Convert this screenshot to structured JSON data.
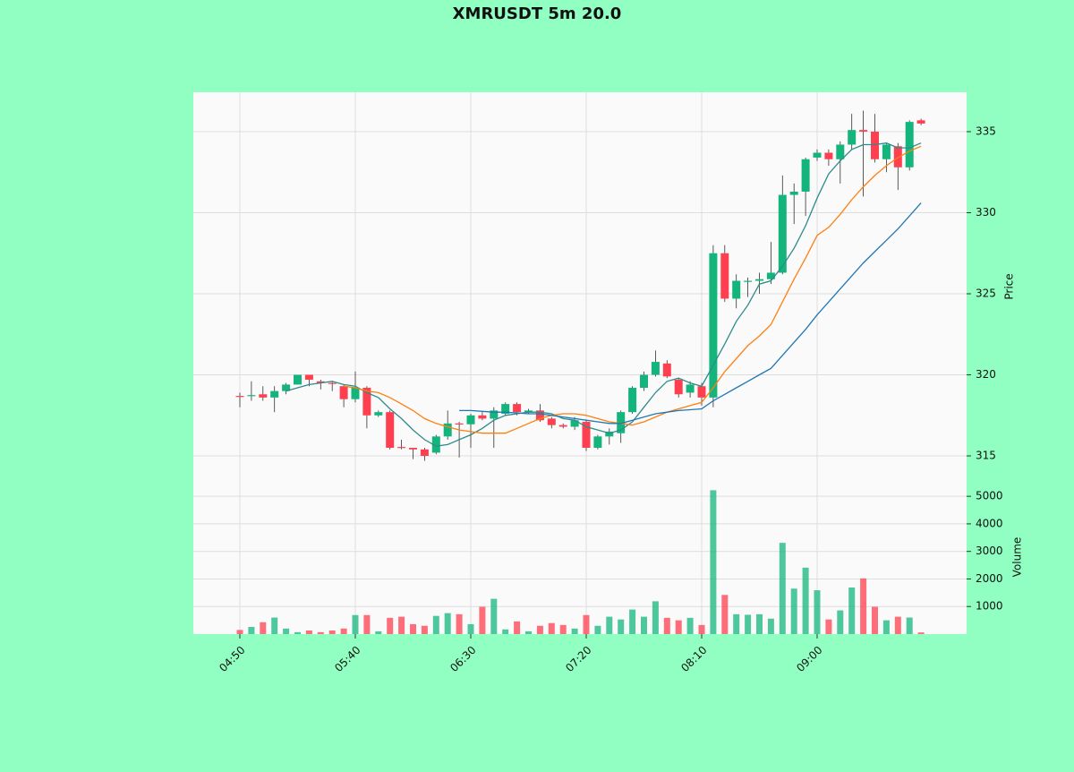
{
  "chart_data": {
    "type": "candlestick",
    "title": "XMRUSDT 5m 20.0",
    "categories": [
      "04:50",
      null,
      null,
      null,
      null,
      null,
      null,
      null,
      null,
      null,
      "05:40",
      null,
      null,
      null,
      null,
      null,
      null,
      null,
      null,
      null,
      "06:30",
      null,
      null,
      null,
      null,
      null,
      null,
      null,
      null,
      null,
      "07:20",
      null,
      null,
      null,
      null,
      null,
      null,
      null,
      null,
      null,
      "08:10",
      null,
      null,
      null,
      null,
      null,
      null,
      null,
      null,
      null,
      "09:00",
      null,
      null,
      null,
      null,
      null,
      null,
      null,
      null,
      null
    ],
    "open": [
      318.7,
      318.7,
      318.8,
      318.6,
      319.0,
      319.4,
      320.0,
      319.6,
      319.5,
      319.3,
      318.5,
      319.2,
      317.5,
      317.7,
      315.55,
      315.5,
      315.4,
      315.2,
      316.2,
      317.0,
      316.95,
      317.5,
      317.3,
      317.6,
      318.2,
      317.7,
      317.8,
      317.3,
      316.9,
      316.8,
      317.1,
      315.5,
      316.2,
      316.4,
      317.7,
      319.2,
      320.0,
      320.7,
      319.7,
      318.9,
      319.3,
      318.6,
      327.5,
      324.7,
      325.8,
      325.8,
      325.9,
      326.3,
      331.1,
      331.3,
      333.4,
      333.7,
      333.3,
      334.2,
      335.1,
      335.0,
      333.3,
      334.1,
      332.8,
      335.7
    ],
    "high": [
      318.9,
      319.6,
      319.3,
      319.3,
      319.5,
      320.0,
      320.0,
      319.7,
      319.6,
      319.4,
      320.2,
      319.3,
      317.8,
      317.8,
      316.0,
      315.5,
      315.5,
      316.3,
      317.8,
      317.1,
      317.6,
      317.7,
      318.0,
      318.3,
      318.3,
      317.9,
      318.2,
      317.4,
      317.0,
      317.4,
      317.2,
      316.3,
      316.7,
      317.8,
      319.3,
      320.2,
      321.5,
      320.9,
      319.8,
      319.6,
      319.5,
      328.0,
      328.0,
      326.2,
      326.0,
      326.3,
      328.2,
      332.3,
      331.8,
      333.4,
      333.9,
      333.9,
      334.4,
      336.1,
      336.3,
      336.1,
      334.3,
      334.3,
      335.7,
      335.8
    ],
    "low": [
      318.0,
      318.4,
      318.4,
      317.7,
      318.8,
      319.4,
      319.3,
      319.1,
      319.0,
      318.0,
      318.3,
      316.7,
      317.4,
      315.4,
      315.4,
      314.8,
      314.7,
      315.1,
      316.0,
      314.9,
      315.5,
      317.2,
      315.5,
      317.5,
      317.5,
      317.6,
      317.1,
      316.7,
      316.7,
      316.6,
      315.3,
      315.4,
      315.7,
      315.8,
      317.6,
      319.0,
      319.9,
      319.8,
      318.6,
      318.6,
      318.1,
      318.0,
      324.5,
      324.1,
      324.8,
      325.0,
      325.6,
      326.2,
      329.3,
      329.8,
      333.2,
      332.9,
      331.8,
      333.9,
      331.0,
      333.1,
      332.5,
      331.4,
      332.6,
      335.4
    ],
    "close": [
      318.65,
      318.75,
      318.6,
      319.0,
      319.4,
      320.0,
      319.7,
      319.5,
      319.45,
      318.5,
      319.2,
      317.5,
      317.7,
      315.5,
      315.5,
      315.4,
      315.0,
      316.2,
      317.0,
      316.95,
      317.5,
      317.3,
      317.8,
      318.2,
      317.7,
      317.8,
      317.2,
      316.9,
      316.8,
      317.2,
      315.5,
      316.2,
      316.5,
      317.7,
      319.2,
      320.0,
      320.8,
      319.9,
      318.8,
      319.4,
      318.6,
      327.5,
      324.7,
      325.8,
      325.8,
      325.9,
      326.3,
      331.1,
      331.3,
      333.3,
      333.7,
      333.3,
      334.2,
      335.1,
      335.0,
      333.3,
      334.2,
      332.8,
      335.6,
      335.5
    ],
    "volume": [
      150,
      260,
      430,
      600,
      200,
      70,
      130,
      70,
      130,
      200,
      690,
      690,
      100,
      590,
      630,
      360,
      300,
      660,
      760,
      720,
      360,
      990,
      1280,
      170,
      460,
      100,
      300,
      400,
      330,
      200,
      690,
      300,
      630,
      530,
      890,
      630,
      1190,
      590,
      500,
      590,
      330,
      5220,
      1420,
      720,
      700,
      720,
      560,
      3310,
      1650,
      2410,
      1590,
      530,
      860,
      1690,
      2020,
      990,
      500,
      630,
      600,
      60
    ],
    "up_color": "#13b57c",
    "down_color": "#fe3f4f",
    "mav": [
      {
        "color": "#2e8b8b",
        "values": [
          null,
          null,
          null,
          null,
          319.0,
          319.2,
          319.4,
          319.5,
          319.6,
          319.4,
          319.3,
          318.9,
          318.6,
          317.9,
          317.3,
          316.6,
          316.0,
          315.6,
          315.7,
          316.0,
          316.3,
          316.7,
          317.2,
          317.5,
          317.6,
          317.7,
          317.7,
          317.6,
          317.3,
          317.2,
          316.8,
          316.6,
          316.4,
          316.6,
          317.1,
          318.0,
          318.9,
          319.6,
          319.8,
          319.5,
          319.3,
          320.6,
          321.9,
          323.3,
          324.3,
          325.6,
          325.8,
          326.7,
          327.8,
          329.2,
          330.9,
          332.4,
          333.2,
          333.9,
          334.2,
          334.2,
          334.3,
          334.0,
          334.0,
          334.3
        ]
      },
      {
        "color": "#ff7f0e",
        "values": [
          null,
          null,
          null,
          null,
          null,
          null,
          null,
          null,
          null,
          319.3,
          319.2,
          319.0,
          318.9,
          318.6,
          318.2,
          317.8,
          317.3,
          317.0,
          316.8,
          316.6,
          316.5,
          316.4,
          316.4,
          316.4,
          316.7,
          317.0,
          317.3,
          317.5,
          317.6,
          317.6,
          317.5,
          317.3,
          317.1,
          317.0,
          316.9,
          317.1,
          317.4,
          317.7,
          317.9,
          318.1,
          318.3,
          319.2,
          320.2,
          321.0,
          321.8,
          322.4,
          323.1,
          324.5,
          325.9,
          327.2,
          328.6,
          329.1,
          329.9,
          330.8,
          331.6,
          332.3,
          332.9,
          333.4,
          333.8,
          334.1
        ]
      },
      {
        "color": "#1f77b4",
        "values": [
          null,
          null,
          null,
          null,
          null,
          null,
          null,
          null,
          null,
          null,
          null,
          null,
          null,
          null,
          null,
          null,
          null,
          null,
          null,
          317.8,
          317.8,
          317.75,
          317.7,
          317.7,
          317.65,
          317.6,
          317.6,
          317.5,
          317.4,
          317.3,
          317.2,
          317.1,
          317.0,
          317.0,
          317.2,
          317.4,
          317.6,
          317.7,
          317.8,
          317.85,
          317.9,
          318.4,
          318.8,
          319.2,
          319.6,
          320.0,
          320.4,
          321.2,
          322.0,
          322.8,
          323.7,
          324.5,
          325.3,
          326.1,
          326.9,
          327.6,
          328.3,
          329.0,
          329.8,
          330.6
        ]
      }
    ],
    "ylabel": "Price",
    "ylim": [
      313.29,
      337.43
    ],
    "yticks": [
      315,
      320,
      325,
      330,
      335
    ],
    "y2label": "Volume",
    "y2lim": [
      0,
      5460
    ],
    "y2ticks": [
      1000,
      2000,
      3000,
      4000,
      5000
    ],
    "grid": true
  }
}
